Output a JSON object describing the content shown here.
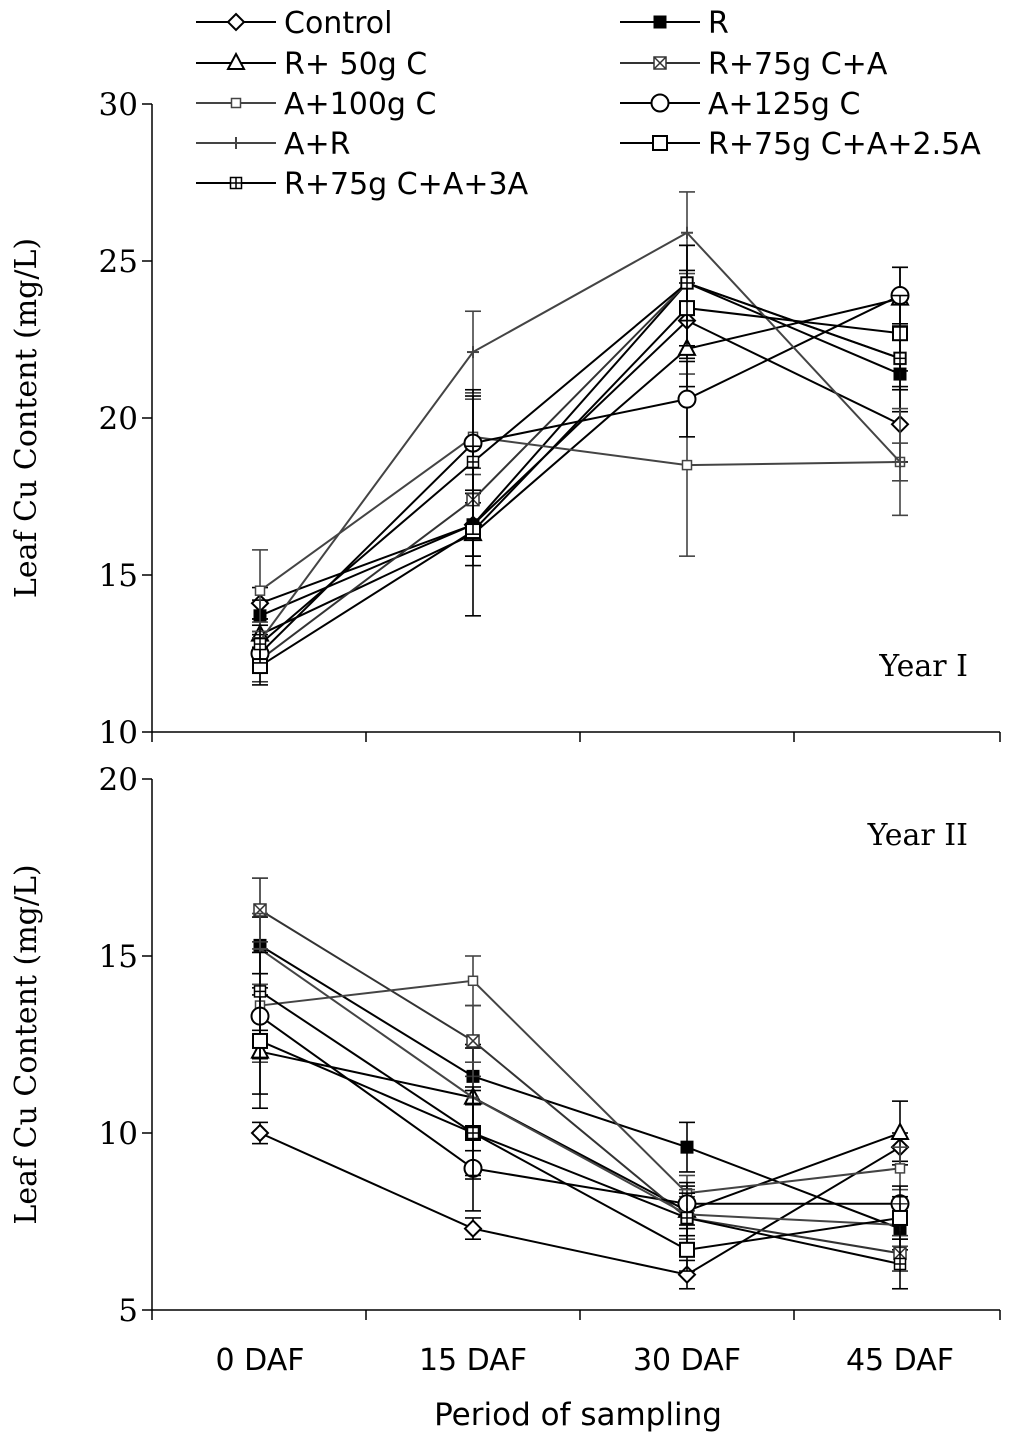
{
  "chart_data": [
    {
      "type": "line",
      "ylabel": "Leaf Cu Content (mg/L)",
      "annotation": "Year I",
      "ylim": [
        10,
        30
      ],
      "yticks": [
        10,
        15,
        20,
        25,
        30
      ],
      "categories": [
        "0 DAF",
        "15 DAF",
        "30 DAF",
        "45 DAF"
      ],
      "series": [
        {
          "name": "Control",
          "marker": "diamond",
          "color": "#000000",
          "values": [
            14.1,
            16.6,
            23.1,
            19.8
          ],
          "err": [
            0.5,
            1.0,
            1.2,
            1.2
          ]
        },
        {
          "name": "R",
          "marker": "filled-square",
          "color": "#000000",
          "values": [
            13.7,
            16.6,
            24.3,
            21.4
          ],
          "err": [
            0.5,
            1.0,
            1.2,
            1.2
          ]
        },
        {
          "name": "R+ 50g C",
          "marker": "triangle",
          "color": "#000000",
          "values": [
            13.1,
            16.3,
            22.2,
            23.8
          ],
          "err": [
            0.5,
            1.0,
            1.2,
            1.0
          ]
        },
        {
          "name": "R+75g C+A",
          "marker": "cross-square",
          "color": "#333333",
          "values": [
            12.3,
            17.4,
            24.3,
            21.9
          ],
          "err": [
            0.7,
            1.0,
            1.2,
            1.0
          ]
        },
        {
          "name": "A+100g C",
          "marker": "small-square",
          "color": "#444444",
          "values": [
            14.5,
            19.4,
            18.5,
            18.6
          ],
          "err": [
            1.3,
            1.2,
            2.9,
            0.6
          ]
        },
        {
          "name": "A+125g C",
          "marker": "circle",
          "color": "#000000",
          "values": [
            12.5,
            19.2,
            20.6,
            23.9
          ],
          "err": [
            0.6,
            1.5,
            1.2,
            0.9
          ]
        },
        {
          "name": "A+R",
          "marker": "plus",
          "color": "#444444",
          "values": [
            12.9,
            22.1,
            25.9,
            18.6
          ],
          "err": [
            0.6,
            1.3,
            1.3,
            1.7
          ]
        },
        {
          "name": "R+75g C+A+2.5A",
          "marker": "square",
          "color": "#000000",
          "values": [
            12.1,
            16.4,
            23.5,
            22.7
          ],
          "err": [
            0.6,
            2.7,
            1.2,
            1.2
          ]
        },
        {
          "name": "R+75g C+A+3A",
          "marker": "plus-square",
          "color": "#000000",
          "values": [
            12.8,
            18.6,
            24.3,
            21.9
          ],
          "err": [
            0.6,
            2.3,
            1.2,
            1.0
          ]
        }
      ]
    },
    {
      "type": "line",
      "ylabel": "Leaf Cu Content (mg/L)",
      "xlabel": "Period of sampling",
      "annotation": "Year II",
      "ylim": [
        5,
        20
      ],
      "yticks": [
        5,
        10,
        15,
        20
      ],
      "categories": [
        "0 DAF",
        "15 DAF",
        "30 DAF",
        "45 DAF"
      ],
      "series": [
        {
          "name": "Control",
          "marker": "diamond",
          "color": "#000000",
          "values": [
            10.0,
            7.3,
            6.0,
            9.6
          ],
          "err": [
            0.3,
            0.3,
            0.4,
            0.4
          ]
        },
        {
          "name": "R",
          "marker": "filled-square",
          "color": "#000000",
          "values": [
            15.3,
            11.6,
            9.6,
            7.3
          ],
          "err": [
            0.8,
            0.8,
            0.7,
            0.6
          ]
        },
        {
          "name": "R+ 50g C",
          "marker": "triangle",
          "color": "#000000",
          "values": [
            12.3,
            11.0,
            7.8,
            10.0
          ],
          "err": [
            1.6,
            1.5,
            0.7,
            0.9
          ]
        },
        {
          "name": "R+75g C+A",
          "marker": "cross-square",
          "color": "#333333",
          "values": [
            16.3,
            12.6,
            7.6,
            6.6
          ],
          "err": [
            0.9,
            1.0,
            0.6,
            0.5
          ]
        },
        {
          "name": "A+100g C",
          "marker": "small-square",
          "color": "#444444",
          "values": [
            13.6,
            14.3,
            8.3,
            9.0
          ],
          "err": [
            1.6,
            0.7,
            0.5,
            0.6
          ]
        },
        {
          "name": "A+125g C",
          "marker": "circle",
          "color": "#000000",
          "values": [
            13.3,
            9.0,
            8.0,
            8.0
          ],
          "err": [
            1.2,
            1.2,
            0.6,
            0.5
          ]
        },
        {
          "name": "A+R",
          "marker": "plus",
          "color": "#444444",
          "values": [
            15.2,
            11.0,
            7.7,
            7.4
          ],
          "err": [
            1.0,
            1.0,
            0.7,
            0.6
          ]
        },
        {
          "name": "R+75g C+A+2.5A",
          "marker": "square",
          "color": "#000000",
          "values": [
            12.6,
            10.0,
            6.7,
            7.6
          ],
          "err": [
            1.5,
            1.2,
            0.6,
            0.6
          ]
        },
        {
          "name": "R+75g C+A+3A",
          "marker": "plus-square",
          "color": "#000000",
          "values": [
            14.0,
            10.0,
            7.6,
            6.3
          ],
          "err": [
            1.1,
            1.3,
            0.7,
            0.7
          ]
        }
      ]
    }
  ]
}
